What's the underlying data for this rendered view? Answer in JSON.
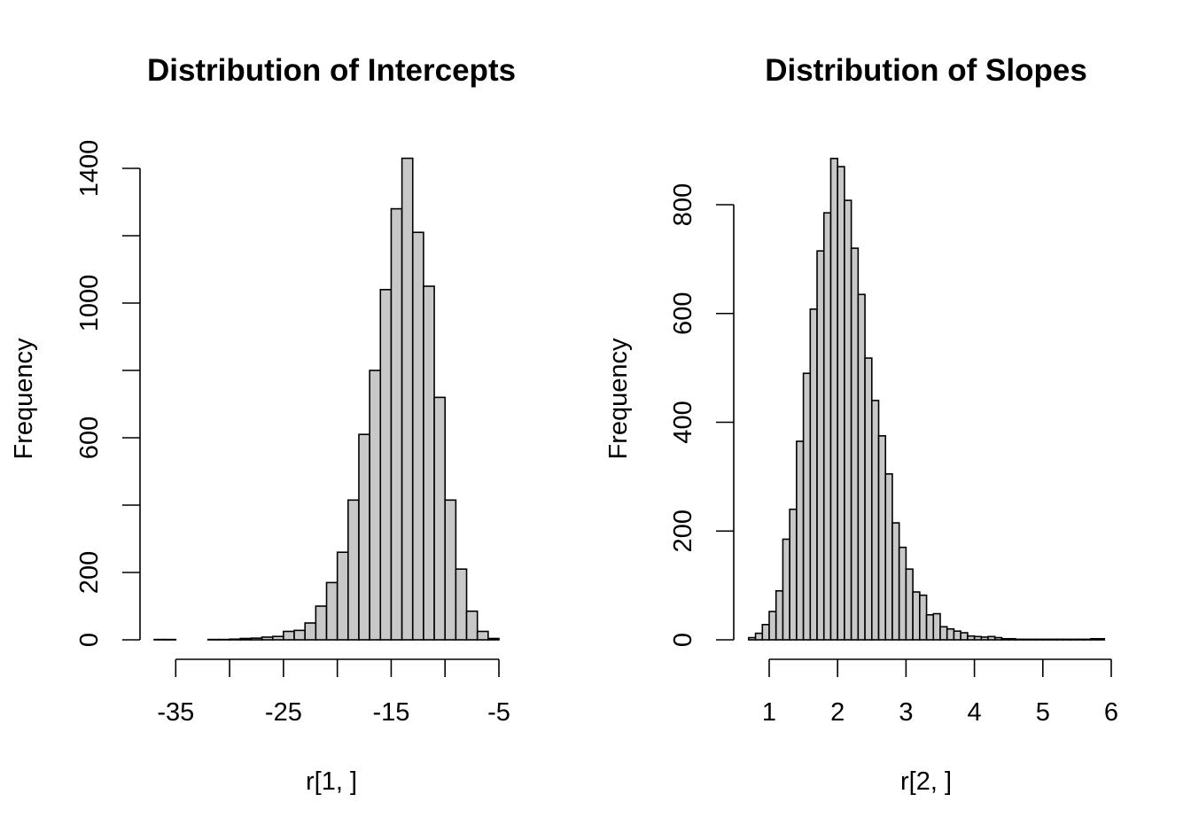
{
  "chart_data": [
    {
      "type": "histogram",
      "title": "Distribution of Intercepts",
      "xlabel": "r[1, ]",
      "ylabel": "Frequency",
      "bin_width": 1,
      "bin_start": -37,
      "values": [
        1,
        1,
        0,
        0,
        0,
        1,
        1,
        2,
        4,
        5,
        8,
        10,
        25,
        28,
        50,
        100,
        170,
        260,
        415,
        610,
        800,
        1040,
        1280,
        1430,
        1210,
        1050,
        720,
        415,
        210,
        85,
        25,
        4
      ],
      "xlim": [
        -37,
        -5
      ],
      "ylim": [
        0,
        1400
      ],
      "xticks": [
        -35,
        -30,
        -25,
        -20,
        -15,
        -10,
        -5
      ],
      "xtick_labels": [
        "-35",
        "",
        "-25",
        "",
        "-15",
        "",
        "-5"
      ],
      "yticks": [
        0,
        200,
        400,
        600,
        800,
        1000,
        1200,
        1400
      ],
      "ytick_labels": [
        "0",
        "200",
        "",
        "600",
        "",
        "1000",
        "",
        "1400"
      ],
      "grid": false,
      "fill_color": "#c8c8c8"
    },
    {
      "type": "histogram",
      "title": "Distribution of Slopes",
      "xlabel": "r[2, ]",
      "ylabel": "Frequency",
      "bin_width": 0.1,
      "bin_start": 0.7,
      "values": [
        4,
        12,
        28,
        52,
        90,
        185,
        240,
        365,
        490,
        608,
        715,
        785,
        885,
        870,
        808,
        720,
        635,
        518,
        440,
        375,
        305,
        215,
        170,
        130,
        88,
        82,
        46,
        48,
        24,
        20,
        16,
        13,
        7,
        6,
        5,
        6,
        4,
        2,
        2,
        1,
        1,
        1,
        1,
        1,
        1,
        1,
        1,
        1,
        1,
        1,
        2,
        2
      ],
      "xlim": [
        0.7,
        5.9
      ],
      "ylim": [
        0,
        880
      ],
      "xticks": [
        1,
        2,
        3,
        4,
        5,
        6
      ],
      "xtick_labels": [
        "1",
        "2",
        "3",
        "4",
        "5",
        "6"
      ],
      "yticks": [
        0,
        200,
        400,
        600,
        800
      ],
      "ytick_labels": [
        "0",
        "200",
        "400",
        "600",
        "800"
      ],
      "grid": false,
      "fill_color": "#c8c8c8"
    }
  ]
}
